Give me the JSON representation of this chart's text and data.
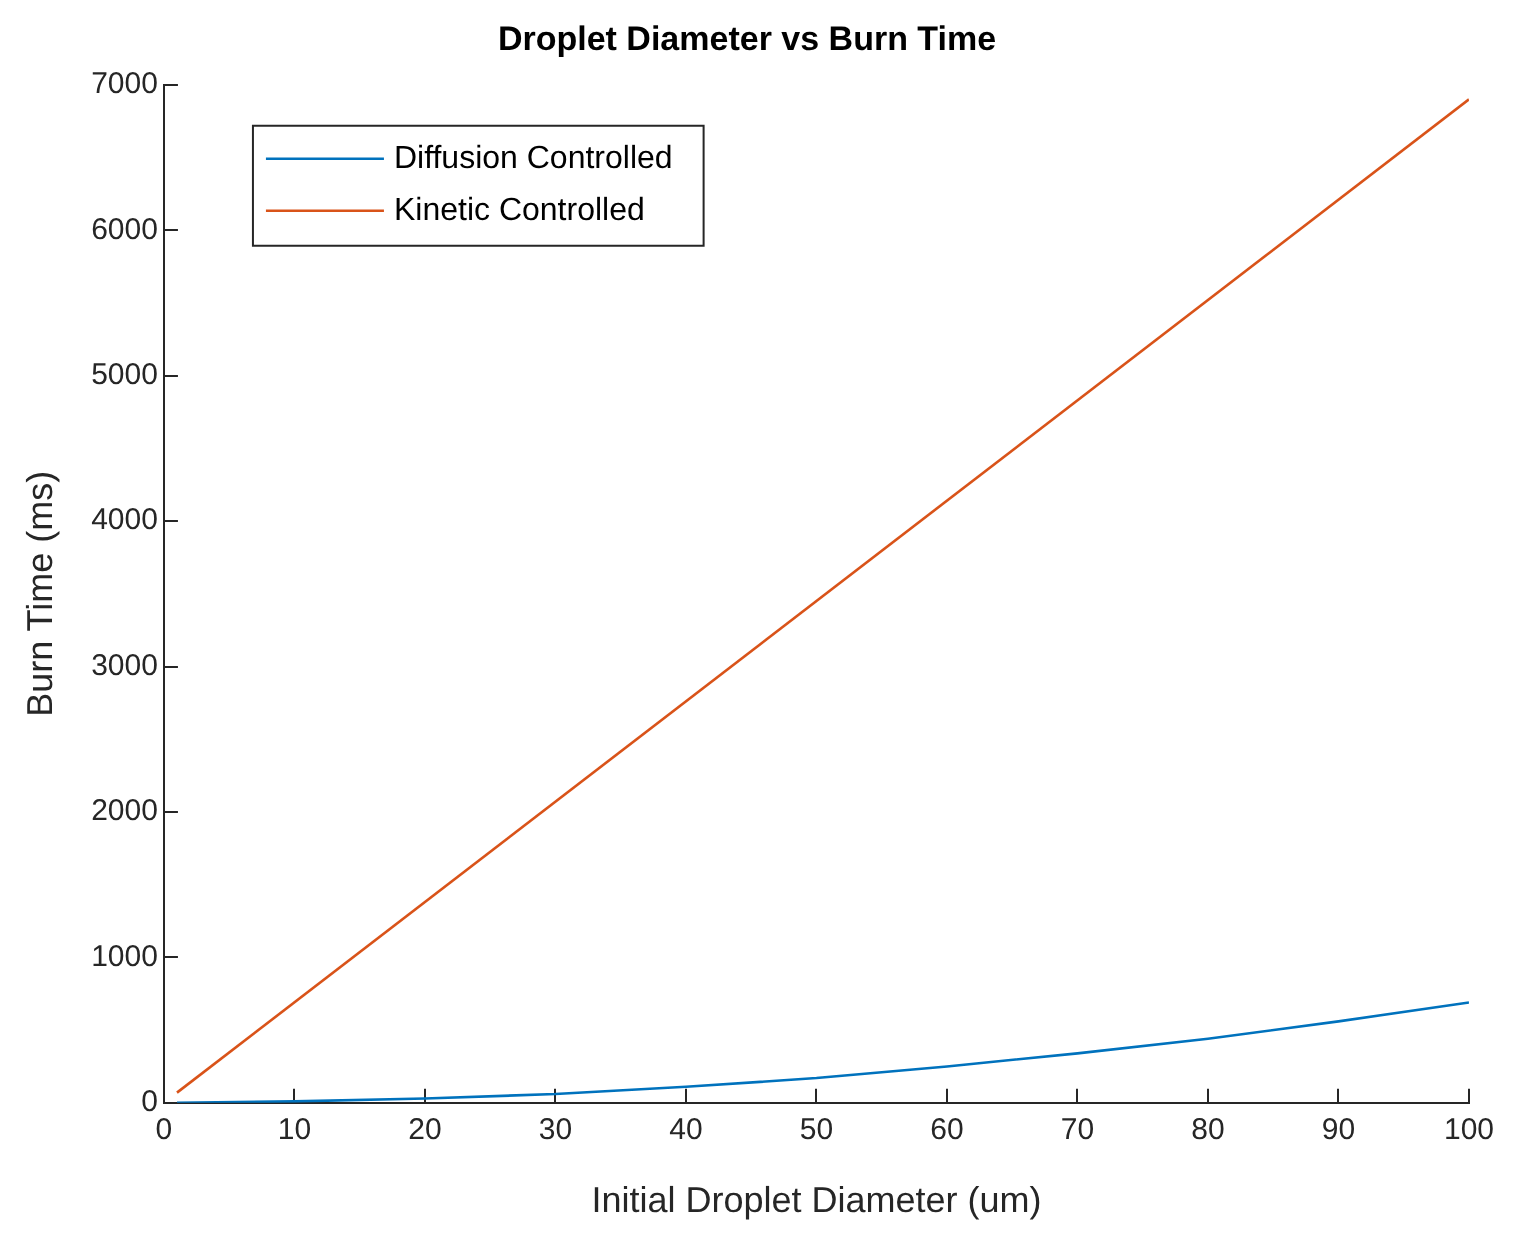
{
  "chart_data": {
    "type": "line",
    "title": "Droplet Diameter vs Burn Time",
    "xlabel": "Initial Droplet Diameter (um)",
    "ylabel": "Burn Time (ms)",
    "x": [
      1,
      10,
      20,
      30,
      40,
      50,
      60,
      70,
      80,
      90,
      100
    ],
    "series": [
      {
        "name": "Diffusion Controlled",
        "color": "#0072bd",
        "values": [
          0,
          10,
          30,
          60,
          110,
          170,
          250,
          340,
          440,
          560,
          690
        ]
      },
      {
        "name": "Kinetic Controlled",
        "color": "#d95319",
        "x": [
          1,
          100
        ],
        "values": [
          70,
          6900
        ]
      }
    ],
    "xlim": [
      0,
      100
    ],
    "xticks": [
      0,
      10,
      20,
      30,
      40,
      50,
      60,
      70,
      80,
      90,
      100
    ],
    "ylim": [
      0,
      7000
    ],
    "yticks": [
      0,
      1000,
      2000,
      3000,
      4000,
      5000,
      6000,
      7000
    ],
    "grid": false,
    "legend": "top left",
    "marker": "none",
    "line_style": "solid"
  }
}
